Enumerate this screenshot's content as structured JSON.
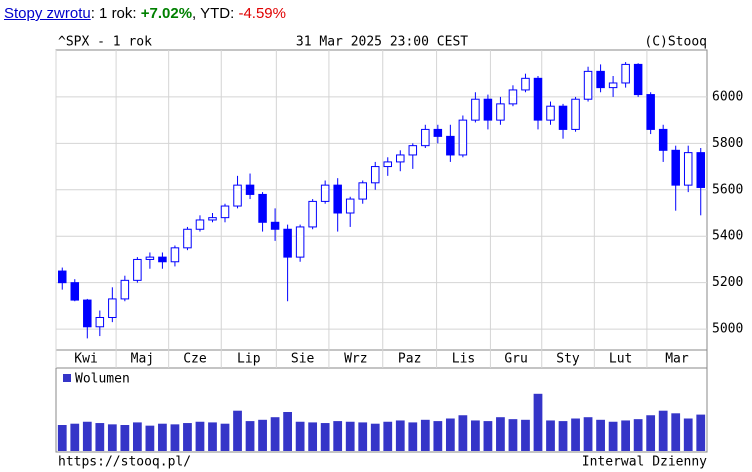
{
  "returns": {
    "link": "Stopy zwrotu",
    "period_label": ": 1 rok: ",
    "period_value": "+7.02%",
    "ytd_label": ", YTD: ",
    "ytd_value": "-4.59%"
  },
  "chart_data": [
    {
      "type": "candlestick",
      "title": "^SPX - 1 rok",
      "date": "31 Mar 2025 23:00 CEST",
      "source": "(C)Stooq",
      "color": "#0000ff",
      "grid": true,
      "xlim": [
        0,
        52
      ],
      "xticks": [
        {
          "value": 0,
          "label": "Kwi"
        },
        {
          "value": 4.8,
          "label": "Maj"
        },
        {
          "value": 9.0,
          "label": "Cze"
        },
        {
          "value": 13.2,
          "label": "Lip"
        },
        {
          "value": 17.6,
          "label": "Sie"
        },
        {
          "value": 21.8,
          "label": "Wrz"
        },
        {
          "value": 26.1,
          "label": "Paz"
        },
        {
          "value": 30.4,
          "label": "Lis"
        },
        {
          "value": 34.7,
          "label": "Gru"
        },
        {
          "value": 38.8,
          "label": "Sty"
        },
        {
          "value": 43.0,
          "label": "Lut"
        },
        {
          "value": 47.2,
          "label": "Mar"
        }
      ],
      "ylim": [
        4910,
        6202
      ],
      "yticks": [
        5000,
        5200,
        5400,
        5600,
        5800,
        6000
      ],
      "open": [
        5250,
        5200,
        5125,
        5010,
        5050,
        5130,
        5210,
        5300,
        5310,
        5290,
        5350,
        5430,
        5470,
        5480,
        5530,
        5620,
        5580,
        5460,
        5430,
        5310,
        5440,
        5550,
        5620,
        5500,
        5560,
        5630,
        5700,
        5720,
        5750,
        5790,
        5860,
        5830,
        5750,
        5900,
        5990,
        5900,
        5970,
        6030,
        6080,
        5900,
        5960,
        5860,
        5990,
        6110,
        6040,
        6060,
        6140,
        6010,
        5860,
        5770,
        5620,
        5760
      ],
      "high": [
        5265,
        5215,
        5130,
        5080,
        5180,
        5230,
        5310,
        5330,
        5330,
        5360,
        5440,
        5490,
        5500,
        5540,
        5660,
        5670,
        5590,
        5520,
        5450,
        5450,
        5560,
        5640,
        5650,
        5570,
        5640,
        5720,
        5740,
        5770,
        5800,
        5880,
        5880,
        5880,
        5920,
        6020,
        6010,
        6000,
        6050,
        6100,
        6090,
        5980,
        5970,
        6000,
        6130,
        6140,
        6090,
        6150,
        6145,
        6020,
        5880,
        5790,
        5790,
        5780
      ],
      "low": [
        5170,
        5120,
        4960,
        4970,
        5030,
        5120,
        5200,
        5260,
        5260,
        5270,
        5340,
        5420,
        5460,
        5460,
        5520,
        5560,
        5420,
        5380,
        5120,
        5290,
        5430,
        5540,
        5420,
        5440,
        5540,
        5600,
        5660,
        5680,
        5690,
        5780,
        5800,
        5720,
        5740,
        5890,
        5860,
        5880,
        5960,
        6020,
        5860,
        5880,
        5820,
        5850,
        5980,
        6020,
        6000,
        6040,
        6000,
        5840,
        5720,
        5510,
        5590,
        5490
      ],
      "close": [
        5200,
        5125,
        5010,
        5050,
        5130,
        5210,
        5300,
        5310,
        5290,
        5350,
        5430,
        5470,
        5480,
        5530,
        5620,
        5580,
        5460,
        5430,
        5310,
        5440,
        5550,
        5620,
        5500,
        5560,
        5630,
        5700,
        5720,
        5750,
        5790,
        5860,
        5830,
        5750,
        5900,
        5990,
        5900,
        5970,
        6030,
        6080,
        5900,
        5960,
        5860,
        5990,
        6110,
        6040,
        6060,
        6140,
        6010,
        5860,
        5770,
        5620,
        5760,
        5610
      ]
    },
    {
      "type": "bar",
      "xlim": [
        0,
        52
      ],
      "ylim": [
        0,
        100
      ],
      "series": [
        {
          "name": "Wolumen",
          "color": "#3535c8",
          "values": [
            40,
            42,
            45,
            43,
            41,
            40,
            44,
            39,
            42,
            41,
            43,
            45,
            44,
            42,
            62,
            46,
            48,
            52,
            60,
            45,
            44,
            43,
            46,
            45,
            44,
            42,
            45,
            47,
            44,
            48,
            46,
            50,
            55,
            47,
            46,
            52,
            49,
            48,
            88,
            47,
            46,
            50,
            52,
            48,
            45,
            47,
            49,
            55,
            62,
            58,
            50,
            56
          ]
        }
      ]
    }
  ],
  "footer": {
    "url": "https://stooq.pl/",
    "interval": "Interwal Dzienny"
  }
}
